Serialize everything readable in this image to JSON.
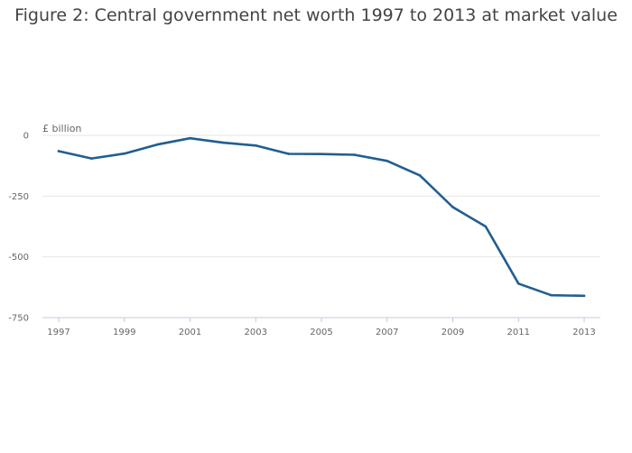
{
  "chart_data": {
    "type": "line",
    "title": "Figure 2: Central government net worth 1997 to 2013 at market value",
    "unit_label": "£ billion",
    "xlabel": "",
    "ylabel": "",
    "x": [
      1997,
      1998,
      1999,
      2000,
      2001,
      2002,
      2003,
      2004,
      2005,
      2006,
      2007,
      2008,
      2009,
      2010,
      2011,
      2012,
      2013
    ],
    "series": [
      {
        "values": [
          -65,
          -95,
          -75,
          -38,
          -12,
          -30,
          -42,
          -76,
          -77,
          -80,
          -105,
          -165,
          -295,
          -375,
          -610,
          -658,
          -660
        ],
        "color": "#215e91"
      }
    ],
    "xlim": [
      1997,
      2013
    ],
    "ylim": [
      -750,
      0
    ],
    "x_ticks": [
      "1997",
      "1999",
      "2001",
      "2003",
      "2005",
      "2007",
      "2009",
      "2011",
      "2013"
    ],
    "y_ticks": [
      "0",
      "-250",
      "-500",
      "-750"
    ],
    "grid": true,
    "legend": "none"
  }
}
